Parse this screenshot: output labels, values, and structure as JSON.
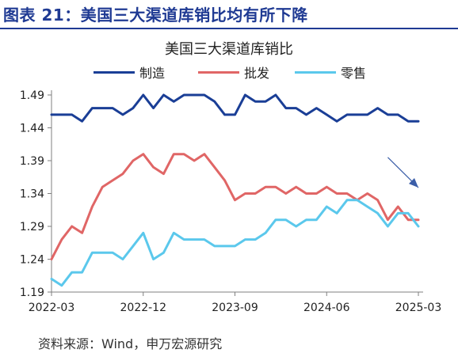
{
  "figure": {
    "title": "图表 21：美国三大渠道库销比均有所下降",
    "source": "资料来源：Wind，申万宏源研究"
  },
  "colors": {
    "title": "#1f3a93",
    "manufacturing": "#1a3e96",
    "wholesale": "#e06666",
    "retail": "#5bc8ec",
    "arrow": "#3b5ea8"
  },
  "chart_data": {
    "type": "line",
    "title": "美国三大渠道库销比",
    "xlabel": "",
    "ylabel": "",
    "ylim": [
      1.19,
      1.49
    ],
    "yticks": [
      "1.19",
      "1.24",
      "1.29",
      "1.34",
      "1.39",
      "1.44",
      "1.49"
    ],
    "xticks": [
      "2022-03",
      "2022-12",
      "2023-09",
      "2024-06",
      "2025-03"
    ],
    "x": [
      "2022-03",
      "2022-04",
      "2022-05",
      "2022-06",
      "2022-07",
      "2022-08",
      "2022-09",
      "2022-10",
      "2022-11",
      "2022-12",
      "2023-01",
      "2023-02",
      "2023-03",
      "2023-04",
      "2023-05",
      "2023-06",
      "2023-07",
      "2023-08",
      "2023-09",
      "2023-10",
      "2023-11",
      "2023-12",
      "2024-01",
      "2024-02",
      "2024-03",
      "2024-04",
      "2024-05",
      "2024-06",
      "2024-07",
      "2024-08",
      "2024-09",
      "2024-10",
      "2024-11",
      "2024-12",
      "2025-01",
      "2025-02",
      "2025-03"
    ],
    "series": [
      {
        "name": "制造",
        "color_key": "manufacturing",
        "values": [
          1.46,
          1.46,
          1.46,
          1.45,
          1.47,
          1.47,
          1.47,
          1.46,
          1.47,
          1.49,
          1.47,
          1.49,
          1.48,
          1.49,
          1.49,
          1.49,
          1.48,
          1.46,
          1.46,
          1.49,
          1.48,
          1.48,
          1.49,
          1.47,
          1.47,
          1.46,
          1.47,
          1.46,
          1.45,
          1.46,
          1.46,
          1.46,
          1.47,
          1.46,
          1.46,
          1.45,
          1.45
        ]
      },
      {
        "name": "批发",
        "color_key": "wholesale",
        "values": [
          1.24,
          1.27,
          1.29,
          1.28,
          1.32,
          1.35,
          1.36,
          1.37,
          1.39,
          1.4,
          1.38,
          1.37,
          1.4,
          1.4,
          1.39,
          1.4,
          1.38,
          1.36,
          1.33,
          1.34,
          1.34,
          1.35,
          1.35,
          1.34,
          1.35,
          1.34,
          1.34,
          1.35,
          1.34,
          1.34,
          1.33,
          1.34,
          1.33,
          1.3,
          1.32,
          1.3,
          1.3
        ]
      },
      {
        "name": "零售",
        "color_key": "retail",
        "values": [
          1.21,
          1.2,
          1.22,
          1.22,
          1.25,
          1.25,
          1.25,
          1.24,
          1.26,
          1.28,
          1.24,
          1.25,
          1.28,
          1.27,
          1.27,
          1.27,
          1.26,
          1.26,
          1.26,
          1.27,
          1.27,
          1.28,
          1.3,
          1.3,
          1.29,
          1.3,
          1.3,
          1.32,
          1.31,
          1.33,
          1.33,
          1.32,
          1.31,
          1.29,
          1.31,
          1.31,
          1.29
        ]
      }
    ],
    "annotations": [
      {
        "type": "arrow",
        "from": [
          "2024-12",
          1.395
        ],
        "to": [
          "2025-03",
          1.349
        ]
      }
    ]
  }
}
